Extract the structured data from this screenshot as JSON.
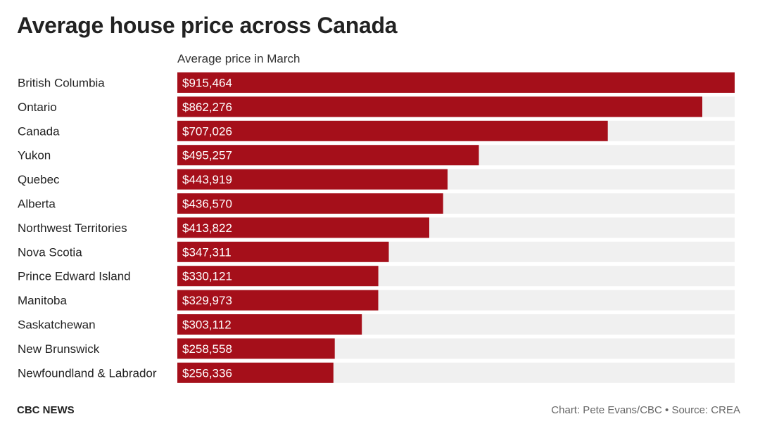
{
  "chart_data": {
    "type": "bar",
    "orientation": "horizontal",
    "title": "Average house price across Canada",
    "subtitle": "Average price in March",
    "categories": [
      "British Columbia",
      "Ontario",
      "Canada",
      "Yukon",
      "Quebec",
      "Alberta",
      "Northwest Territories",
      "Nova Scotia",
      "Prince Edward Island",
      "Manitoba",
      "Saskatchewan",
      "New Brunswick",
      "Newfoundland & Labrador"
    ],
    "values": [
      915464,
      862276,
      707026,
      495257,
      443919,
      436570,
      413822,
      347311,
      330121,
      329973,
      303112,
      258558,
      256336
    ],
    "value_labels": [
      "$915,464",
      "$862,276",
      "$707,026",
      "$495,257",
      "$443,919",
      "$436,570",
      "$413,822",
      "$347,311",
      "$330,121",
      "$329,973",
      "$303,112",
      "$258,558",
      "$256,336"
    ],
    "xlim": [
      0,
      915464
    ],
    "bar_color": "#a50f1a",
    "track_color": "#f0f0f0",
    "label_color": "#ffffff"
  },
  "footer": {
    "brand": "CBC NEWS",
    "credit": "Chart: Pete Evans/CBC • Source: CREA"
  }
}
